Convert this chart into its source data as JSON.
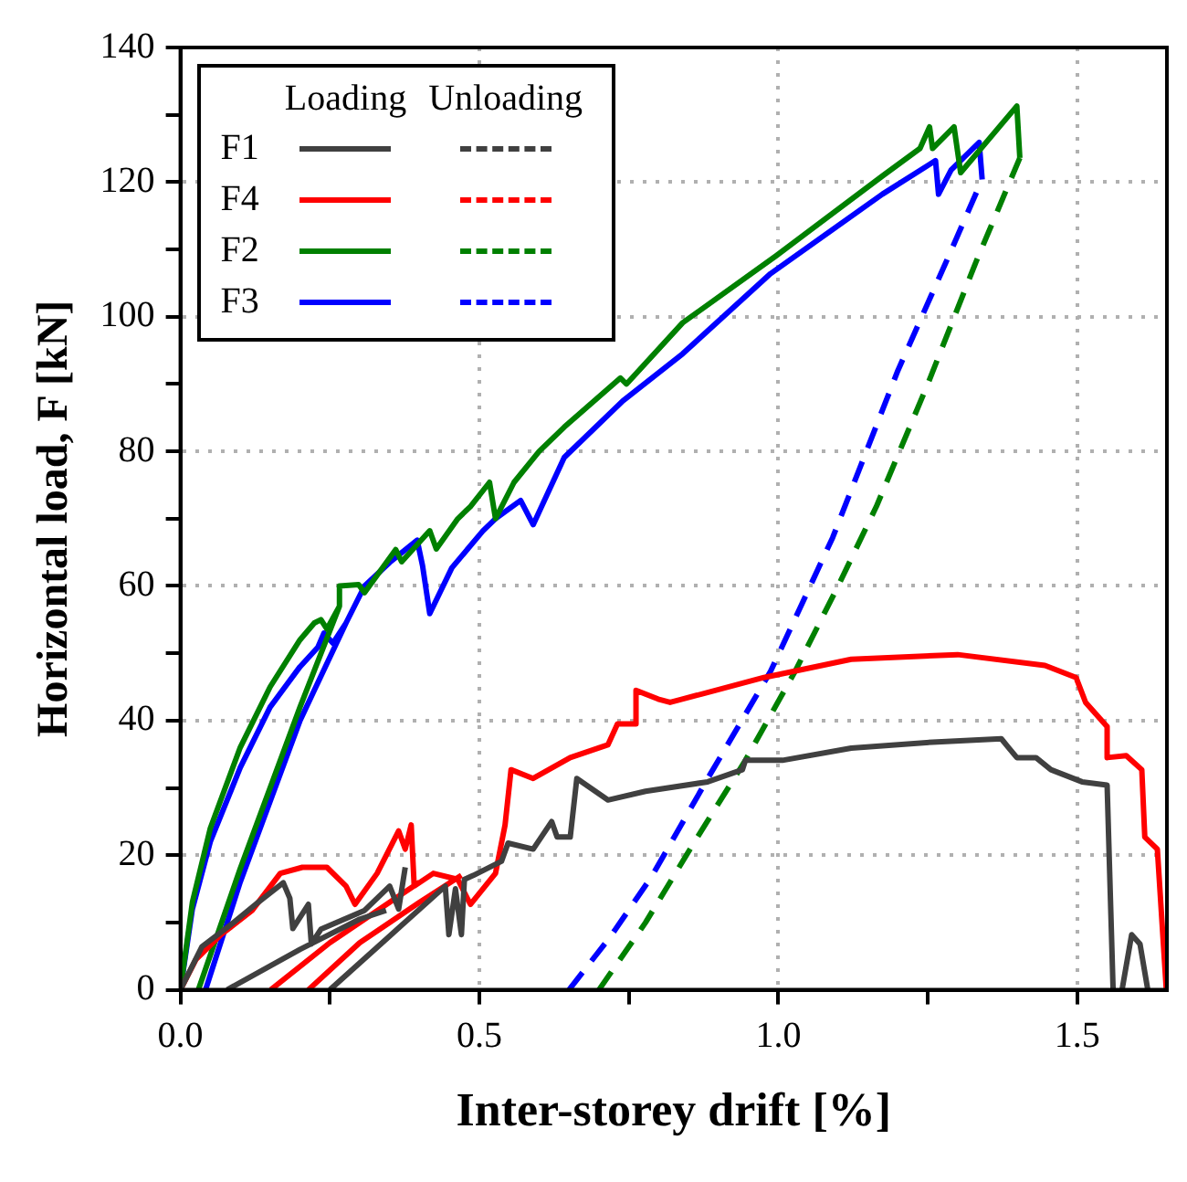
{
  "chart_data": {
    "type": "line",
    "xlabel": "Inter-storey drift [%]",
    "ylabel": "Horizontal load, F [kN]",
    "xlim": [
      0,
      1.65
    ],
    "xticks": [
      {
        "value": 0,
        "label": "0.0"
      },
      {
        "value": 0.25,
        "label": null
      },
      {
        "value": 0.5,
        "label": "0.5"
      },
      {
        "value": 0.75,
        "label": null
      },
      {
        "value": 1,
        "label": "1.0"
      },
      {
        "value": 1.25,
        "label": null
      },
      {
        "value": 1.5,
        "label": "1.5"
      }
    ],
    "ylim": [
      0,
      140
    ],
    "yticks": [
      0,
      {
        "value": 10,
        "label": null
      },
      20,
      {
        "value": 30,
        "label": null
      },
      40,
      {
        "value": 50,
        "label": null
      },
      60,
      {
        "value": 70,
        "label": null
      },
      80,
      {
        "value": 90,
        "label": null
      },
      100,
      {
        "value": 110,
        "label": null
      },
      120,
      {
        "value": 130,
        "label": null
      },
      140
    ],
    "grid": true,
    "legend": "top left",
    "marker": "none",
    "annotations": [
      "Loading",
      "Unloading"
    ],
    "series": [
      {
        "name": "F1",
        "color": "#404040",
        "line_style": "solid",
        "x": [
          0,
          0.036,
          0.089,
          0.13,
          0.172,
          0.183,
          0.188,
          0.214,
          0.219,
          0.235,
          0.308,
          0.35,
          0.365,
          0.376,
          null,
          0.078,
          0.2,
          0.3,
          0.344,
          null,
          0.25,
          0.35,
          0.443,
          0.449,
          0.46,
          0.47,
          0.475,
          0.49,
          0.537,
          0.548,
          0.59,
          0.621,
          0.63,
          0.652,
          0.663,
          0.715,
          0.778,
          0.882,
          0.94,
          0.945,
          1.007,
          1.122,
          1.258,
          1.373,
          1.385,
          1.399,
          1.431,
          1.456,
          1.508,
          1.55,
          1.56,
          null,
          1.575,
          1.591,
          1.605,
          1.618
        ],
        "values": [
          0,
          6.4,
          10,
          13,
          15.9,
          13.6,
          9.1,
          12.7,
          6.8,
          9,
          11.8,
          15.4,
          12,
          18.2,
          null,
          0,
          6,
          10.5,
          11.8,
          null,
          0,
          8,
          15.4,
          8.2,
          15,
          8.2,
          16.4,
          17,
          19.1,
          21.8,
          20.9,
          25,
          22.7,
          22.7,
          31.4,
          28.2,
          29.5,
          30.9,
          32.7,
          34.1,
          34.1,
          35.9,
          36.8,
          37.3,
          36,
          34.5,
          34.5,
          32.7,
          30.9,
          30.4,
          0,
          null,
          0,
          8.2,
          6.8,
          0
        ]
      },
      {
        "name": "F4",
        "color": "#ff0000",
        "line_style": "solid",
        "x": [
          0,
          0.026,
          0.068,
          0.12,
          0.167,
          0.204,
          0.245,
          0.277,
          0.292,
          0.329,
          0.365,
          0.376,
          0.386,
          0.391,
          0.423,
          0.464,
          0.485,
          0.527,
          0.543,
          0.553,
          0.59,
          0.652,
          0.715,
          0.731,
          0.762,
          0.762,
          0.799,
          0.819,
          0.976,
          1.122,
          1.3,
          1.446,
          1.498,
          1.514,
          1.55,
          1.55,
          1.582,
          1.608,
          1.613,
          1.634,
          1.649,
          null,
          0.151,
          0.25,
          0.35,
          0.4,
          null,
          0.214,
          0.3,
          0.4,
          0.47
        ],
        "values": [
          0,
          4.5,
          8.2,
          11.8,
          17.3,
          18.2,
          18.2,
          15.4,
          12.7,
          17.3,
          23.6,
          20.9,
          24.5,
          15.4,
          17.3,
          16.4,
          12.7,
          17.3,
          24.5,
          32.7,
          31.4,
          34.5,
          36.4,
          39.5,
          39.5,
          44.5,
          43.2,
          42.7,
          46.4,
          49.1,
          49.8,
          48.2,
          46.4,
          42.7,
          39.1,
          34.5,
          34.8,
          32.7,
          22.7,
          20.9,
          0,
          null,
          0,
          7,
          13,
          16,
          null,
          0,
          7,
          13,
          17
        ]
      },
      {
        "name": "F2",
        "color": "#008000",
        "line_style": "solid",
        "x": [
          0,
          0.02,
          0.05,
          0.1,
          0.15,
          0.2,
          0.224,
          0.235,
          0.245,
          0.266,
          null,
          0.03,
          0.1,
          0.2,
          0.266,
          0.266,
          0.298,
          0.308,
          0.36,
          0.37,
          0.417,
          0.428,
          0.464,
          0.485,
          0.517,
          0.527,
          0.558,
          0.6,
          0.642,
          0.736,
          0.746,
          0.84,
          0.997,
          1.174,
          1.237,
          1.253,
          1.258,
          1.294,
          1.305,
          1.399,
          1.404
        ],
        "values": [
          0,
          13,
          24,
          36,
          45,
          52,
          54.5,
          55,
          53.6,
          57,
          null,
          0,
          18,
          42,
          57,
          60,
          60.2,
          59,
          65.4,
          63.6,
          68.2,
          65.5,
          70,
          71.8,
          75.4,
          70,
          75.4,
          80,
          83.6,
          90.9,
          90,
          99.1,
          109.1,
          120.9,
          125,
          128.2,
          125,
          128.2,
          121.4,
          131.3,
          123.6
        ]
      },
      {
        "name": "F3",
        "color": "#0000ff",
        "line_style": "solid",
        "x": [
          0,
          0.02,
          0.05,
          0.1,
          0.15,
          0.2,
          0.23,
          0.24,
          0.255,
          0.277,
          null,
          0.042,
          0.1,
          0.2,
          0.277,
          0.308,
          0.35,
          0.396,
          0.405,
          0.417,
          0.454,
          0.506,
          0.527,
          0.569,
          0.59,
          0.642,
          0.74,
          0.84,
          0.987,
          1.174,
          1.263,
          1.268,
          1.289,
          1.336,
          1.341
        ],
        "values": [
          0,
          12,
          22,
          33,
          42,
          48,
          50.9,
          53,
          51.5,
          54.5,
          null,
          0,
          16,
          40,
          54.5,
          60,
          63.5,
          66.8,
          63,
          55.9,
          62.7,
          68.2,
          70,
          72.7,
          69.1,
          79.1,
          87.5,
          94.5,
          106.4,
          118.2,
          123.2,
          118.2,
          121.8,
          125.9,
          120.4
        ]
      },
      {
        "color": "#008000",
        "line_style": "dashed",
        "x": [
          0.7,
          0.778,
          0.86,
          0.945,
          1.028,
          1.1,
          1.164,
          1.25,
          1.33,
          1.404
        ],
        "values": [
          0,
          10,
          22,
          34.1,
          47.3,
          60,
          71.8,
          90,
          108,
          123.6
        ]
      },
      {
        "color": "#0000ff",
        "line_style": "dashed",
        "x": [
          0.65,
          0.72,
          0.788,
          0.882,
          0.987,
          1.091,
          1.2,
          1.28,
          1.341
        ],
        "values": [
          0,
          8,
          16.8,
          31.4,
          47.3,
          67.2,
          92,
          108,
          120.4
        ]
      }
    ]
  }
}
